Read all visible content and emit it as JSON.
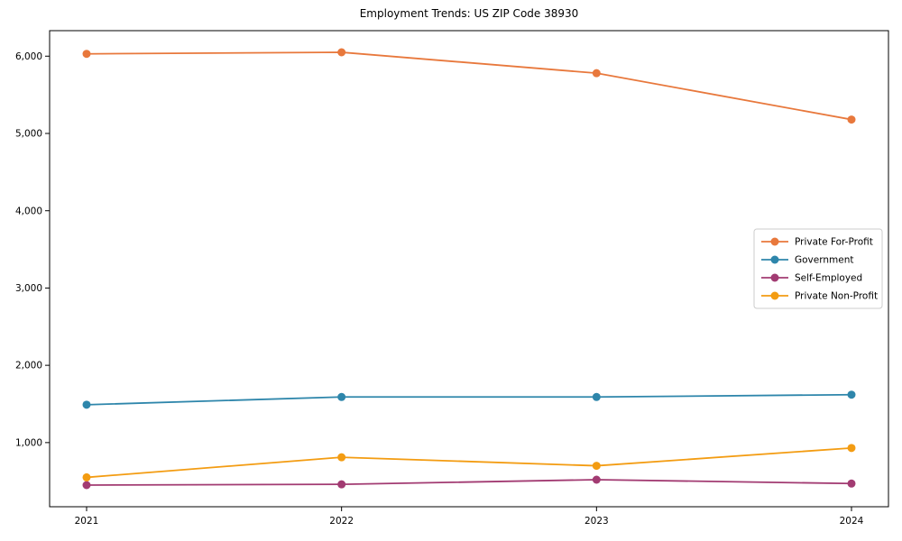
{
  "page": {
    "title": "Employment Trends: US ZIP Code 38930"
  },
  "chart_data": {
    "type": "line",
    "title": "Employment Trends: US ZIP Code 38930",
    "x": [
      "2021",
      "2022",
      "2023",
      "2024"
    ],
    "series": [
      {
        "name": "Private For-Profit",
        "color": "#E8783C",
        "values": [
          6030,
          6050,
          5780,
          5180
        ]
      },
      {
        "name": "Government",
        "color": "#2E86AB",
        "values": [
          1490,
          1590,
          1590,
          1620
        ]
      },
      {
        "name": "Self-Employed",
        "color": "#A23B72",
        "values": [
          450,
          460,
          520,
          470
        ]
      },
      {
        "name": "Private Non-Profit",
        "color": "#F39C12",
        "values": [
          550,
          810,
          700,
          930
        ]
      }
    ],
    "xlabel": "",
    "ylabel": "",
    "ylim": [
      170,
      6330
    ],
    "yticks": [
      1000,
      2000,
      3000,
      4000,
      5000,
      6000
    ],
    "ytick_labels": [
      "1,000",
      "2,000",
      "3,000",
      "4,000",
      "5,000",
      "6,000"
    ],
    "grid": false,
    "marker": "o",
    "legend_position": "center right",
    "axis_color": "#000000",
    "legend_border_color": "#cccccc",
    "legend_bg_color": "#ffffff"
  }
}
